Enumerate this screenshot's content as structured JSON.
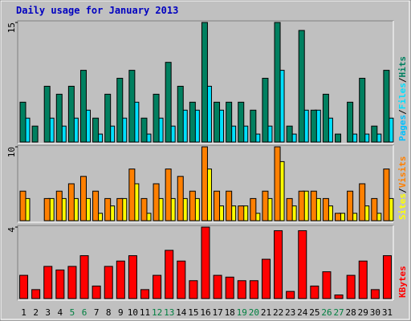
{
  "chart_data": [
    {
      "type": "bar",
      "title": "Daily usage for January 2013",
      "ylim": [
        0,
        15
      ],
      "yticks": [
        15
      ],
      "legend_separator": "/",
      "series": [
        {
          "name": "Pages",
          "color": "#00c0ff",
          "values": [
            0,
            0,
            0,
            0,
            0,
            0,
            0,
            0,
            0,
            0,
            0,
            0,
            0,
            0,
            0,
            0,
            0,
            0,
            0,
            0,
            0,
            0,
            0,
            0,
            0,
            0,
            0,
            0,
            0,
            0,
            0
          ]
        },
        {
          "name": "Files",
          "color": "#00e0ff",
          "values": [
            3,
            0,
            3,
            2,
            3,
            4,
            1,
            2,
            3,
            5,
            1,
            3,
            2,
            4,
            4,
            7,
            4,
            2,
            2,
            1,
            2,
            9,
            1,
            4,
            4,
            3,
            0,
            1,
            1,
            1,
            3
          ]
        },
        {
          "name": "Hits",
          "color": "#008060",
          "values": [
            5,
            2,
            7,
            6,
            7,
            9,
            3,
            6,
            8,
            9,
            3,
            6,
            10,
            7,
            5,
            15,
            5,
            5,
            5,
            4,
            8,
            15,
            2,
            14,
            4,
            6,
            1,
            5,
            8,
            2,
            9
          ]
        }
      ]
    },
    {
      "type": "bar",
      "ylim": [
        0,
        10
      ],
      "yticks": [
        10
      ],
      "legend_separator": "/",
      "series": [
        {
          "name": "Sites",
          "color": "#ffff00",
          "values": [
            3,
            0,
            3,
            3,
            3,
            3,
            1,
            2,
            3,
            5,
            1,
            3,
            3,
            3,
            3,
            7,
            2,
            2,
            2,
            1,
            3,
            8,
            2,
            4,
            3,
            2,
            1,
            1,
            2,
            1,
            3
          ]
        },
        {
          "name": "Visits",
          "color": "#ff8000",
          "values": [
            4,
            0,
            3,
            4,
            5,
            6,
            4,
            3,
            3,
            7,
            3,
            5,
            7,
            6,
            4,
            10,
            4,
            4,
            2,
            3,
            4,
            10,
            3,
            4,
            4,
            3,
            1,
            4,
            5,
            3,
            7
          ]
        }
      ]
    },
    {
      "type": "bar",
      "ylim": [
        0,
        4
      ],
      "yticks": [
        4
      ],
      "categories": [
        "1",
        "2",
        "3",
        "4",
        "5",
        "6",
        "7",
        "8",
        "9",
        "10",
        "11",
        "12",
        "13",
        "14",
        "15",
        "16",
        "17",
        "18",
        "19",
        "20",
        "21",
        "22",
        "23",
        "24",
        "25",
        "26",
        "27",
        "28",
        "29",
        "30",
        "31"
      ],
      "category_colors": [
        "#000000",
        "#000000",
        "#000000",
        "#000000",
        "#008040",
        "#008040",
        "#000000",
        "#000000",
        "#000000",
        "#000000",
        "#000000",
        "#008040",
        "#008040",
        "#000000",
        "#000000",
        "#000000",
        "#000000",
        "#000000",
        "#008040",
        "#008040",
        "#000000",
        "#000000",
        "#000000",
        "#000000",
        "#000000",
        "#008040",
        "#008040",
        "#000000",
        "#000000",
        "#000000",
        "#000000"
      ],
      "series": [
        {
          "name": "KBytes",
          "color": "#ff0000",
          "values": [
            1.3,
            0.5,
            1.8,
            1.6,
            1.8,
            2.4,
            0.7,
            1.8,
            2.1,
            2.4,
            0.5,
            1.3,
            2.7,
            2.1,
            1.0,
            4.0,
            1.3,
            1.2,
            1.0,
            1.0,
            2.2,
            3.8,
            0.4,
            3.8,
            0.7,
            1.5,
            0.2,
            1.3,
            2.1,
            0.5,
            2.4
          ]
        }
      ]
    }
  ]
}
